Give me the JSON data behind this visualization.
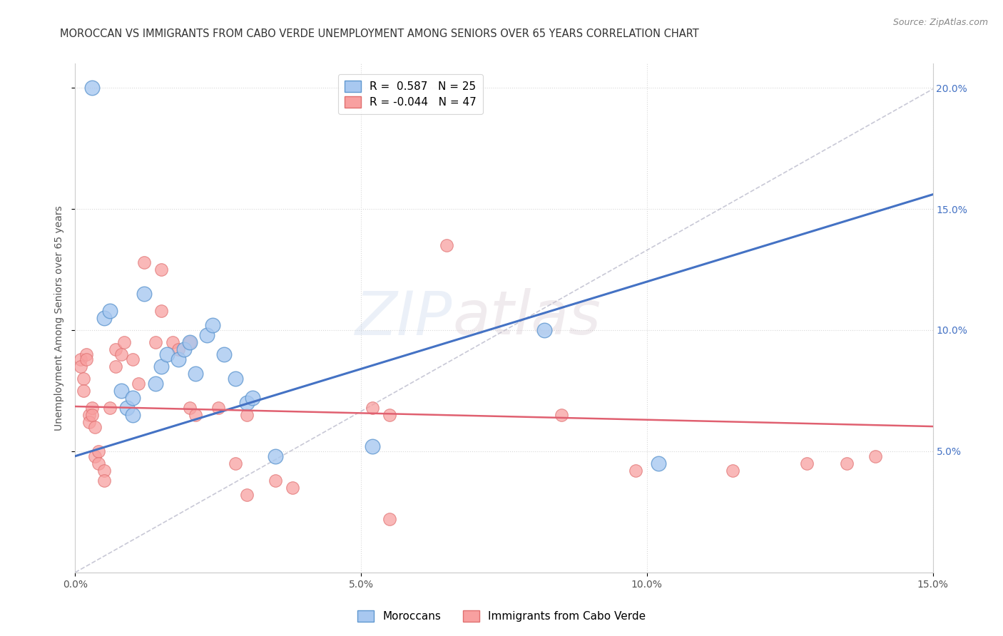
{
  "title": "MOROCCAN VS IMMIGRANTS FROM CABO VERDE UNEMPLOYMENT AMONG SENIORS OVER 65 YEARS CORRELATION CHART",
  "source": "Source: ZipAtlas.com",
  "ylabel": "Unemployment Among Seniors over 65 years",
  "x_tick_labels": [
    "0.0%",
    "5.0%",
    "10.0%",
    "15.0%"
  ],
  "x_tick_vals": [
    0,
    5,
    10,
    15
  ],
  "y_tick_labels_right": [
    "5.0%",
    "10.0%",
    "15.0%",
    "20.0%"
  ],
  "y_tick_vals": [
    5,
    10,
    15,
    20
  ],
  "blue_regression": {
    "slope": 0.72,
    "intercept": 4.8
  },
  "pink_regression": {
    "slope": -0.055,
    "intercept": 6.85
  },
  "diag_slope": 1.33,
  "diag_intercept": 0.0,
  "background_color": "#ffffff",
  "grid_color": "#d8d8d8",
  "watermark_zip": "ZIP",
  "watermark_atlas": "atlas",
  "blue_points": [
    [
      0.3,
      20.0
    ],
    [
      0.5,
      10.5
    ],
    [
      0.6,
      10.8
    ],
    [
      0.8,
      7.5
    ],
    [
      0.9,
      6.8
    ],
    [
      1.0,
      7.2
    ],
    [
      1.0,
      6.5
    ],
    [
      1.2,
      11.5
    ],
    [
      1.4,
      7.8
    ],
    [
      1.5,
      8.5
    ],
    [
      1.6,
      9.0
    ],
    [
      1.8,
      8.8
    ],
    [
      1.9,
      9.2
    ],
    [
      2.0,
      9.5
    ],
    [
      2.1,
      8.2
    ],
    [
      2.3,
      9.8
    ],
    [
      2.4,
      10.2
    ],
    [
      2.6,
      9.0
    ],
    [
      2.8,
      8.0
    ],
    [
      3.0,
      7.0
    ],
    [
      3.1,
      7.2
    ],
    [
      3.5,
      4.8
    ],
    [
      5.2,
      5.2
    ],
    [
      8.2,
      10.0
    ],
    [
      10.2,
      4.5
    ]
  ],
  "pink_points": [
    [
      0.1,
      8.8
    ],
    [
      0.1,
      8.5
    ],
    [
      0.15,
      8.0
    ],
    [
      0.15,
      7.5
    ],
    [
      0.2,
      9.0
    ],
    [
      0.2,
      8.8
    ],
    [
      0.25,
      6.5
    ],
    [
      0.25,
      6.2
    ],
    [
      0.3,
      6.8
    ],
    [
      0.3,
      6.5
    ],
    [
      0.35,
      6.0
    ],
    [
      0.35,
      4.8
    ],
    [
      0.4,
      5.0
    ],
    [
      0.4,
      4.5
    ],
    [
      0.5,
      4.2
    ],
    [
      0.5,
      3.8
    ],
    [
      0.6,
      6.8
    ],
    [
      0.7,
      9.2
    ],
    [
      0.7,
      8.5
    ],
    [
      0.8,
      9.0
    ],
    [
      0.85,
      9.5
    ],
    [
      1.0,
      8.8
    ],
    [
      1.1,
      7.8
    ],
    [
      1.2,
      12.8
    ],
    [
      1.4,
      9.5
    ],
    [
      1.5,
      10.8
    ],
    [
      1.5,
      12.5
    ],
    [
      1.7,
      9.5
    ],
    [
      1.8,
      9.2
    ],
    [
      2.0,
      9.5
    ],
    [
      2.0,
      6.8
    ],
    [
      2.1,
      6.5
    ],
    [
      2.5,
      6.8
    ],
    [
      2.8,
      4.5
    ],
    [
      3.0,
      6.5
    ],
    [
      3.0,
      3.2
    ],
    [
      3.5,
      3.8
    ],
    [
      3.8,
      3.5
    ],
    [
      5.2,
      6.8
    ],
    [
      5.5,
      2.2
    ],
    [
      5.5,
      6.5
    ],
    [
      6.5,
      13.5
    ],
    [
      8.5,
      6.5
    ],
    [
      9.8,
      4.2
    ],
    [
      11.5,
      4.2
    ],
    [
      12.8,
      4.5
    ],
    [
      13.5,
      4.5
    ],
    [
      14.0,
      4.8
    ]
  ]
}
